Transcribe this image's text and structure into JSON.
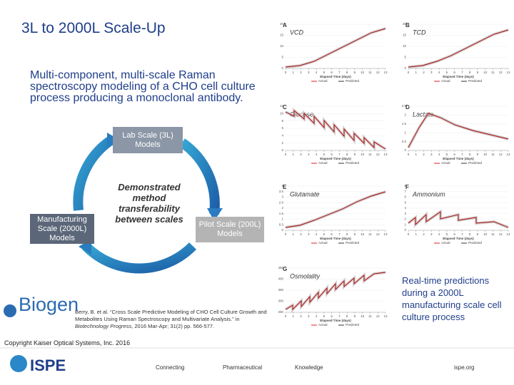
{
  "title": "3L to 2000L Scale-Up",
  "description": "Multi-component, multi-scale Raman spectroscopy modeling of a CHO cell culture process producing a monoclonal antibody.",
  "diagram": {
    "nodes": [
      "Lab Scale (3L) Models",
      "Manufacturing Scale (2000L) Models",
      "Pilot Scale (200L) Models"
    ],
    "center": "Demonstrated method transferability between scales"
  },
  "logo": "Biogen",
  "citation": {
    "before": "Berry, B. et al. “Cross Scale Predictive Modeling of CHO Cell Culture Growth and Metabolites Using Raman Spectroscopy and Multivariate Analysis.” in ",
    "journal": "Biotechnology Progress",
    "after": ", 2016 Mar-Apr; 31(2) pp. 566-577."
  },
  "copyright": "Copyright Kaiser Optical Systems, Inc. 2016",
  "caption": "Real-time predictions during a 2000L manufacturing scale cell culture process",
  "footer": {
    "brand": "ISPE",
    "links": [
      "Connecting",
      "Pharmaceutical",
      "Knowledge"
    ],
    "site": "ispe.org"
  },
  "panels": [
    {
      "letter": "A",
      "title": "VCD",
      "yticks": [
        0,
        5,
        10,
        15,
        20
      ],
      "xticks": [
        0,
        1,
        2,
        3,
        4,
        5,
        6,
        7,
        8,
        9,
        10,
        11,
        12,
        13
      ],
      "xlabel": "Elapsed Time (days)",
      "legend": [
        "Actual",
        "Predicted"
      ]
    },
    {
      "letter": "B",
      "title": "TCD",
      "yticks": [
        0,
        5,
        10,
        15,
        20
      ],
      "xticks": [
        0,
        1,
        2,
        3,
        4,
        5,
        6,
        7,
        8,
        9,
        10,
        11,
        12,
        13
      ],
      "xlabel": "Elapsed Time (days)",
      "legend": [
        "Actual",
        "Predicted"
      ]
    },
    {
      "letter": "C",
      "title": "Glucose",
      "yticks": [
        0,
        2,
        4,
        6,
        8,
        10,
        12
      ],
      "xticks": [
        0,
        1,
        2,
        3,
        4,
        5,
        6,
        7,
        8,
        9,
        10,
        11,
        12,
        13
      ],
      "xlabel": "Elapsed Time (days)",
      "legend": [
        "Actual",
        "Predicted"
      ]
    },
    {
      "letter": "D",
      "title": "Lactate",
      "yticks": [
        0,
        0.5,
        1,
        1.5,
        2,
        2.5
      ],
      "xticks": [
        0,
        1,
        2,
        3,
        4,
        5,
        6,
        7,
        8,
        9,
        10,
        11,
        12,
        13
      ],
      "xlabel": "Elapsed Time (days)",
      "legend": [
        "Actual",
        "Predicted"
      ]
    },
    {
      "letter": "E",
      "title": "Glutamate",
      "yticks": [
        0,
        0.5,
        1,
        1.5,
        2,
        2.5,
        3,
        3.5,
        4
      ],
      "xticks": [
        0,
        1,
        2,
        3,
        4,
        5,
        6,
        7,
        8,
        9,
        10,
        11,
        12,
        13
      ],
      "xlabel": "Elapsed Time (days)",
      "legend": [
        "Actual",
        "Predicted"
      ]
    },
    {
      "letter": "F",
      "title": "Ammonium",
      "yticks": [
        0,
        1,
        2,
        3,
        4,
        5,
        6,
        7,
        8
      ],
      "xticks": [
        0,
        1,
        2,
        3,
        4,
        5,
        6,
        7,
        8,
        9,
        10,
        11,
        12,
        13
      ],
      "xlabel": "Elapsed Time (days)",
      "legend": [
        "Actual",
        "Predicted"
      ]
    },
    {
      "letter": "G",
      "title": "Osmolality",
      "yticks": [
        250,
        300,
        350,
        400,
        450
      ],
      "xticks": [
        0,
        1,
        2,
        3,
        4,
        5,
        6,
        7,
        8,
        9,
        10,
        11,
        12,
        13
      ],
      "xlabel": "Elapsed Time (days)",
      "legend": [
        "Actual",
        "Predicted"
      ]
    }
  ]
}
